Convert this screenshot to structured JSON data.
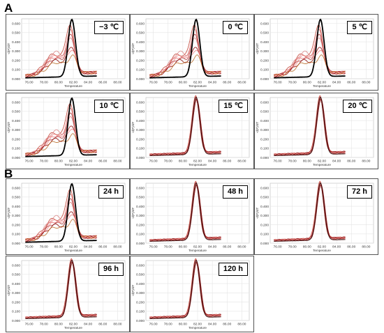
{
  "sections": [
    {
      "letter": "A",
      "panels": [
        {
          "label": "−3 ℃",
          "style": "mixed"
        },
        {
          "label": "0 ℃",
          "style": "mixed"
        },
        {
          "label": "5 ℃",
          "style": "mixed"
        },
        {
          "label": "10 ℃",
          "style": "mixed"
        },
        {
          "label": "15 ℃",
          "style": "converged"
        },
        {
          "label": "20 ℃",
          "style": "converged"
        }
      ]
    },
    {
      "letter": "B",
      "panels": [
        {
          "label": "24 h",
          "style": "mixed"
        },
        {
          "label": "48 h",
          "style": "converged"
        },
        {
          "label": "72 h",
          "style": "converged"
        },
        {
          "label": "96 h",
          "style": "converged"
        },
        {
          "label": "120 h",
          "style": "converged"
        }
      ]
    }
  ],
  "chart_data": {
    "type": "line",
    "xlabel": "Temperature",
    "ylabel": "-d(F)/dT",
    "xlim": [
      75,
      89
    ],
    "ylim": [
      0,
      0.65
    ],
    "x_ticks": [
      "76.00",
      "78.00",
      "80.00",
      "82.00",
      "84.00",
      "86.00",
      "88.00"
    ],
    "y_ticks": [
      "0.000",
      "0.100",
      "0.200",
      "0.300",
      "0.400",
      "0.500",
      "0.600"
    ],
    "grid": true,
    "reference_peak": {
      "x": 81.8,
      "y": 0.62,
      "color": "#000000"
    },
    "sample_peaks_mixed": [
      0.48,
      0.42,
      0.37,
      0.32,
      0.26,
      0.21,
      0.16
    ],
    "sample_shoulder_mixed": [
      0.22,
      0.19,
      0.17,
      0.24,
      0.15,
      0.2,
      0.13
    ],
    "sample_peaks_converged": [
      0.62,
      0.6,
      0.58,
      0.61,
      0.59
    ],
    "series_colors": [
      "#c0392b",
      "#e06666",
      "#a52a2a",
      "#d98080",
      "#8b0000",
      "#f08080",
      "#b5651d"
    ]
  }
}
